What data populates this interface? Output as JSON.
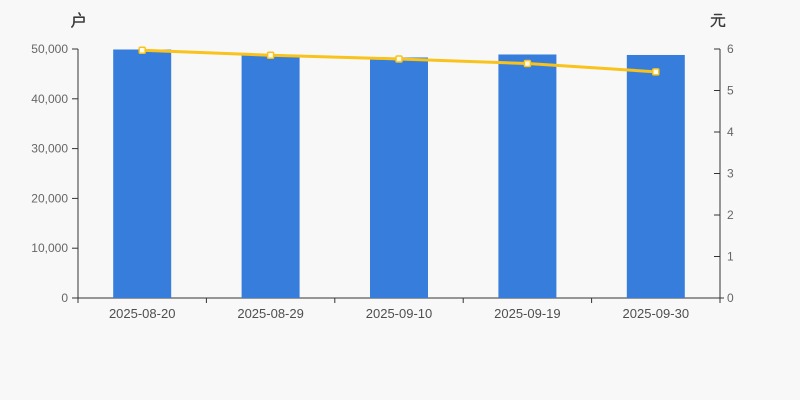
{
  "page": {
    "background": "#f8f8f8"
  },
  "colors": {
    "axis_line": "#333333",
    "tick_text": "#666666",
    "x_label_text": "#4f4f4f",
    "axis_title_text": "#3b3b3b",
    "bar": "#377EDC",
    "line": "#F9C31C",
    "marker_fill": "#FFFBE8"
  },
  "chart_data": {
    "type": "bar",
    "subtype": "bar-and-line-dual-axis",
    "categories": [
      "2025-08-20",
      "2025-08-29",
      "2025-09-10",
      "2025-09-19",
      "2025-09-30"
    ],
    "series": [
      {
        "name": "户",
        "type": "bar",
        "axis": "left",
        "values": [
          49900,
          48700,
          48300,
          48900,
          48800
        ],
        "color": "#377EDC"
      },
      {
        "name": "元",
        "type": "line",
        "axis": "right",
        "values": [
          5.97,
          5.85,
          5.76,
          5.65,
          5.45
        ],
        "color": "#F9C31C",
        "marker": "square",
        "marker_fill": "#FFFBE8"
      }
    ],
    "left_axis": {
      "title": "户",
      "min": 0,
      "max": 50000,
      "tick_step": 10000,
      "tick_labels": [
        "0",
        "10,000",
        "20,000",
        "30,000",
        "40,000",
        "50,000"
      ]
    },
    "right_axis": {
      "title": "元",
      "min": 0,
      "max": 6,
      "tick_step": 1,
      "tick_labels": [
        "0",
        "1",
        "2",
        "3",
        "4",
        "5",
        "6"
      ]
    },
    "grid": false,
    "legend": false
  }
}
